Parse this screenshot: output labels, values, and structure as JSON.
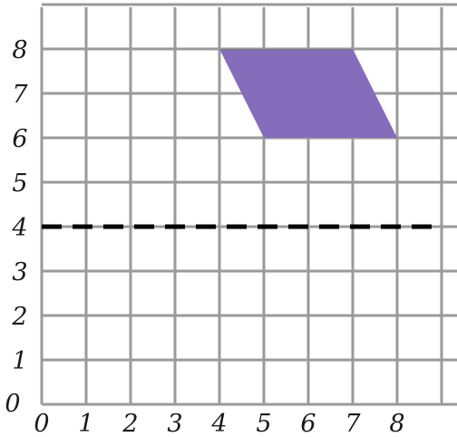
{
  "diagram": {
    "type": "coordinate-grid",
    "x_ticks": [
      "0",
      "1",
      "2",
      "3",
      "4",
      "5",
      "6",
      "7",
      "8"
    ],
    "y_ticks": [
      "0",
      "1",
      "2",
      "3",
      "4",
      "5",
      "6",
      "7",
      "8"
    ],
    "origin_label": "0",
    "dashed_line": {
      "orientation": "horizontal",
      "y": 4
    },
    "shape": {
      "kind": "parallelogram",
      "fill": "#856dbb",
      "vertices": [
        [
          4,
          8
        ],
        [
          7,
          8
        ],
        [
          8,
          6
        ],
        [
          5,
          6
        ]
      ]
    }
  }
}
